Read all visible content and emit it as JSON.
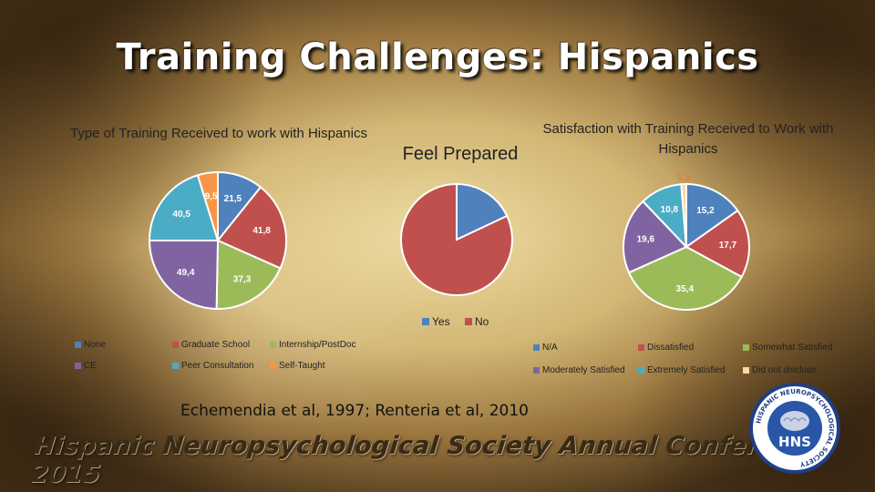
{
  "slide": {
    "title": "Training Challenges: Hispanics",
    "citation": "Echemendia et al, 1997; Renteria et al, 2010",
    "footer": "Hispanic Neuropsychological Society Annual Conference 2015",
    "logo": {
      "ring_text": "HISPANIC NEUROPSYCHOLOGICAL SOCIETY",
      "initials": "HNS"
    }
  },
  "colors": {
    "blue": "#4f81bd",
    "red": "#c0504d",
    "green": "#9bbb59",
    "purple": "#8064a2",
    "cyan": "#4bacc6",
    "orange": "#f79646",
    "beige": "#ffd6a5"
  },
  "chart_data": [
    {
      "type": "pie",
      "title": "Type of Training Received to work with Hispanics",
      "categories": [
        "None",
        "Graduate School",
        "Internship/PostDoc",
        "CE",
        "Peer Consultation",
        "Self-Taught"
      ],
      "values": [
        21.5,
        41.8,
        37.3,
        49.4,
        40.5,
        9.5
      ],
      "labels": [
        "21,5",
        "41,8",
        "37,3",
        "49,4",
        "40,5",
        "9,5"
      ],
      "colors": [
        "#4f81bd",
        "#c0504d",
        "#9bbb59",
        "#8064a2",
        "#4bacc6",
        "#f79646"
      ],
      "legend": "bottom"
    },
    {
      "type": "pie",
      "title": "Feel Prepared",
      "categories": [
        "Yes",
        "No"
      ],
      "values": [
        18,
        82
      ],
      "labels": [],
      "colors": [
        "#4f81bd",
        "#c0504d"
      ],
      "legend": "bottom"
    },
    {
      "type": "pie",
      "title": "Satisfaction with Training Received to Work with Hispanics",
      "categories": [
        "N/A",
        "Dissatisfied",
        "Somewhat Satisfied",
        "Moderately Satisfied",
        "Extremely Satisfied",
        "Did not disclose"
      ],
      "values": [
        15.2,
        17.7,
        35.4,
        19.6,
        10.8,
        1.3
      ],
      "labels": [
        "15,2",
        "17,7",
        "35,4",
        "19,6",
        "10,8",
        "1,3"
      ],
      "colors": [
        "#4f81bd",
        "#c0504d",
        "#9bbb59",
        "#8064a2",
        "#4bacc6",
        "#ffd6a5"
      ],
      "legend": "bottom"
    }
  ]
}
